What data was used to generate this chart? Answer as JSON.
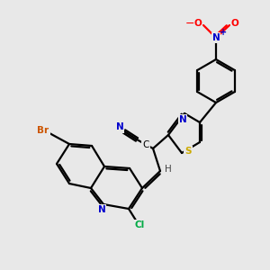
{
  "background_color": "#e8e8e8",
  "bond_color": "#000000",
  "atom_colors": {
    "N": "#0000cc",
    "O": "#ff0000",
    "S": "#ccaa00",
    "Br": "#cc5500",
    "Cl": "#00aa44",
    "C": "#000000",
    "H": "#444444"
  },
  "figsize": [
    3.0,
    3.0
  ],
  "dpi": 100,
  "lw": 1.6,
  "fs": 7.5
}
